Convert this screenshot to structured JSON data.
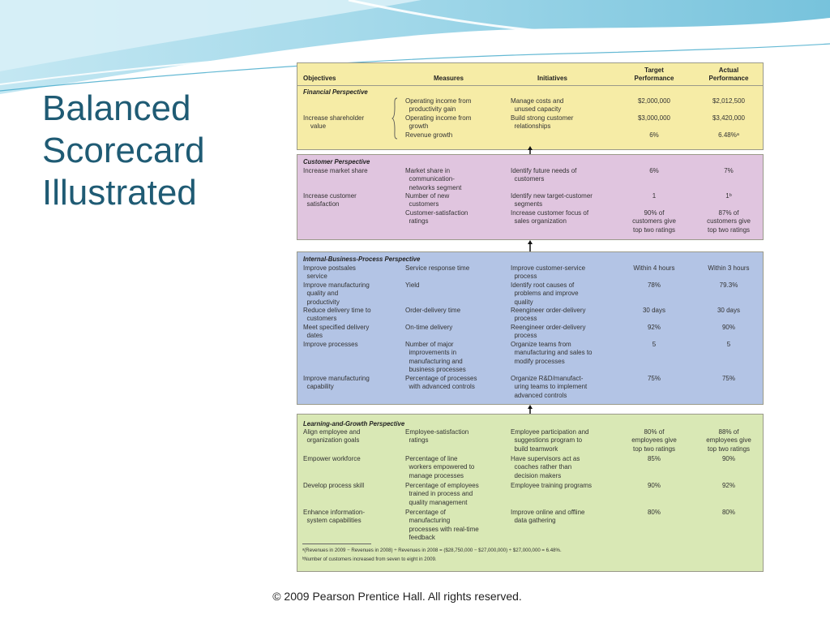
{
  "slide": {
    "title_lines": [
      "Balanced",
      "Scorecard",
      "Illustrated"
    ],
    "copyright": "© 2009 Pearson Prentice Hall. All rights reserved."
  },
  "scorecard": {
    "headers": {
      "objectives": "Objectives",
      "measures": "Measures",
      "initiatives": "Initiatives",
      "target": "Target\nPerformance",
      "actual": "Actual\nPerformance"
    },
    "financial": {
      "label": "Financial Perspective",
      "objective": "Increase shareholder\n    value",
      "measures": [
        "Operating income from\n  productivity gain",
        "Operating income from\n  growth",
        "Revenue growth"
      ],
      "initiatives": [
        "Manage costs and\n  unused capacity",
        "Build strong customer\n  relationships"
      ],
      "targets": [
        "$2,000,000",
        "$3,000,000",
        "6%"
      ],
      "actuals": [
        "$2,012,500",
        "$3,420,000",
        "6.48%ᵃ"
      ]
    },
    "customer": {
      "label": "Customer Perspective",
      "rows": [
        {
          "objective": "Increase market share",
          "measure": "Market share in\n  communication-\n  networks segment",
          "initiative": "Identify future needs of\n  customers",
          "target": "6%",
          "actual": "7%"
        },
        {
          "objective": "Increase customer\n  satisfaction",
          "measure": "Number of new\n  customers",
          "initiative": "Identify new target-customer\n  segments",
          "target": "1",
          "actual": "1ᵇ"
        },
        {
          "objective": "",
          "measure": "Customer-satisfaction\n  ratings",
          "initiative": "Increase customer focus of\n  sales organization",
          "target": "90% of\ncustomers give\ntop two ratings",
          "actual": "87% of\ncustomers give\ntop two ratings"
        }
      ]
    },
    "internal": {
      "label": "Internal-Business-Process Perspective",
      "rows": [
        {
          "objective": "Improve postsales\n  service",
          "measure": "Service response time",
          "initiative": "Improve customer-service\n  process",
          "target": "Within 4 hours",
          "actual": "Within 3 hours"
        },
        {
          "objective": "Improve manufacturing\n  quality and\n  productivity",
          "measure": "Yield",
          "initiative": "Identify root causes of\n  problems and improve\n  quality",
          "target": "78%",
          "actual": "79.3%"
        },
        {
          "objective": "Reduce delivery time to\n  customers",
          "measure": "Order-delivery time",
          "initiative": "Reengineer order-delivery\n  process",
          "target": "30 days",
          "actual": "30 days"
        },
        {
          "objective": "Meet specified delivery\n  dates",
          "measure": "On-time delivery",
          "initiative": "Reengineer order-delivery\n  process",
          "target": "92%",
          "actual": "90%"
        },
        {
          "objective": "Improve processes",
          "measure": "Number of major\n  improvements in\n  manufacturing and\n  business processes",
          "initiative": "Organize teams from\n  manufacturing and sales to\n  modify processes",
          "target": "5",
          "actual": "5"
        },
        {
          "objective": "Improve manufacturing\n  capability",
          "measure": "Percentage of processes\n  with advanced controls",
          "initiative": "Organize R&D/manufact-\n  uring teams to implement\n  advanced controls",
          "target": "75%",
          "actual": "75%"
        }
      ]
    },
    "learning": {
      "label": "Learning-and-Growth Perspective",
      "rows": [
        {
          "objective": "Align employee and\n  organization goals",
          "measure": "Employee-satisfaction\n  ratings",
          "initiative": "Employee participation and\n  suggestions program to\n  build teamwork",
          "target": "80% of\nemployees give\ntop two ratings",
          "actual": "88% of\nemployees give\ntop two ratings"
        },
        {
          "objective": "Empower workforce",
          "measure": "Percentage of line\n  workers empowered to\n  manage processes",
          "initiative": "Have supervisors act as\n  coaches rather than\n  decision makers",
          "target": "85%",
          "actual": "90%"
        },
        {
          "objective": "Develop process skill",
          "measure": "Percentage of employees\n  trained in process and\n  quality management",
          "initiative": "Employee training programs",
          "target": "90%",
          "actual": "92%"
        },
        {
          "objective": "Enhance information-\n  system capabilities",
          "measure": "Percentage of\n  manufacturing\n  processes with real-time\n  feedback",
          "initiative": "Improve online and offline\n  data gathering",
          "target": "80%",
          "actual": "80%"
        }
      ],
      "footnotes": [
        "ᵃ(Revenues in 2009 − Revenues in 2008) ÷ Revenues in 2008 = ($28,750,000 − $27,000,000) ÷ $27,000,000 = 6.48%.",
        "ᵇNumber of customers increased from seven to eight in 2009."
      ]
    }
  },
  "colors": {
    "title": "#1f5b74",
    "financial_bg": "#f6eca6",
    "customer_bg": "#e0c5df",
    "internal_bg": "#b3c4e5",
    "learning_bg": "#d9e8b5",
    "wave": "#7fc8df"
  }
}
